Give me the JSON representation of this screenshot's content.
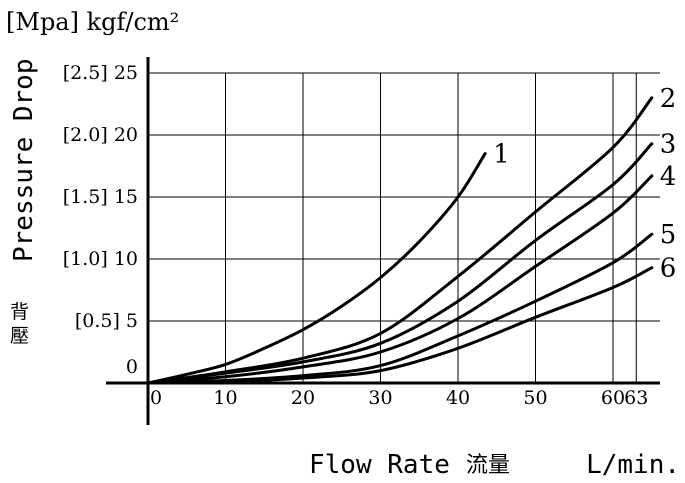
{
  "chart_data": {
    "type": "line",
    "unit_label": "[Mpa] kgf/cm²",
    "ylabel": "Pressure Drop",
    "ylabel_cn": "背壓",
    "xlabel": "Flow Rate",
    "xlabel_cn": "流量",
    "xunit": "L/min.",
    "xlim": [
      0,
      65
    ],
    "ylim": [
      0,
      25
    ],
    "grid": true,
    "xticks": [
      0,
      10,
      20,
      30,
      40,
      50,
      60,
      63
    ],
    "xtick_labels": [
      "0",
      "10",
      "20",
      "30",
      "40",
      "50",
      "60",
      "63"
    ],
    "yticks": [
      0,
      5,
      10,
      15,
      20,
      25
    ],
    "ytick_labels": [
      "0",
      "[0.5] 5",
      "[1.0] 10",
      "[1.5] 15",
      "[2.0] 20",
      "[2.5] 25"
    ],
    "series": [
      {
        "name": "1",
        "x": [
          0,
          5,
          10,
          15,
          20,
          25,
          30,
          35,
          40,
          43.5
        ],
        "y": [
          0,
          0.7,
          1.5,
          2.8,
          4.3,
          6.2,
          8.5,
          11.4,
          15.0,
          18.5
        ]
      },
      {
        "name": "2",
        "x": [
          0,
          10,
          20,
          30,
          40,
          50,
          60,
          65
        ],
        "y": [
          0,
          0.9,
          2.0,
          4.0,
          8.6,
          13.8,
          19.0,
          23.0
        ]
      },
      {
        "name": "3",
        "x": [
          0,
          10,
          20,
          30,
          40,
          50,
          60,
          65
        ],
        "y": [
          0,
          0.8,
          1.7,
          3.2,
          6.6,
          11.5,
          16.0,
          19.3
        ]
      },
      {
        "name": "4",
        "x": [
          0,
          10,
          20,
          30,
          40,
          50,
          60,
          65
        ],
        "y": [
          0,
          0.5,
          1.3,
          2.5,
          5.2,
          9.4,
          13.7,
          16.7
        ]
      },
      {
        "name": "5",
        "x": [
          0,
          10,
          20,
          30,
          40,
          50,
          60,
          65
        ],
        "y": [
          0,
          0.2,
          0.6,
          1.4,
          3.8,
          6.6,
          9.7,
          12.0
        ]
      },
      {
        "name": "6",
        "x": [
          0,
          10,
          20,
          30,
          40,
          50,
          60,
          65
        ],
        "y": [
          0,
          0.1,
          0.4,
          1.0,
          2.8,
          5.3,
          7.7,
          9.3
        ]
      }
    ]
  }
}
